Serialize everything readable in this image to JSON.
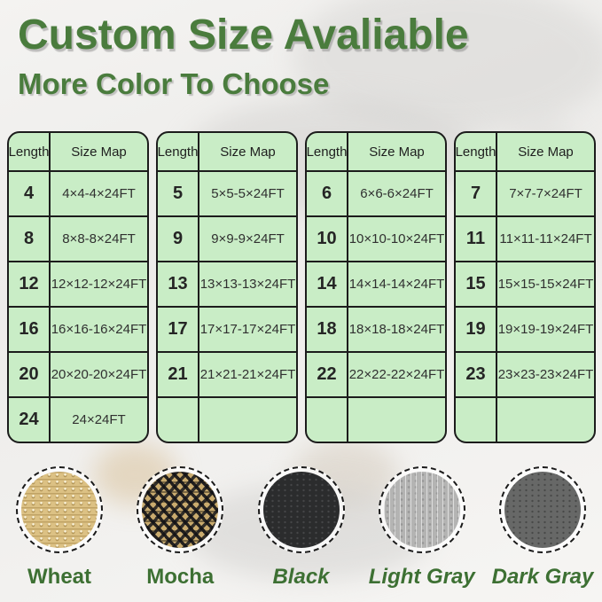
{
  "title": "Custom Size Avaliable",
  "subtitle": "More Color To Choose",
  "palette": {
    "heading_green": "#4a7c3d",
    "label_green": "#3d7033",
    "table_bg": "#c9edc6",
    "table_border": "#1c1c1c"
  },
  "tables": [
    {
      "headers": [
        "Length",
        "Size Map"
      ],
      "rows": [
        [
          "4",
          "4×4-4×24FT"
        ],
        [
          "8",
          "8×8-8×24FT"
        ],
        [
          "12",
          "12×12-12×24FT"
        ],
        [
          "16",
          "16×16-16×24FT"
        ],
        [
          "20",
          "20×20-20×24FT"
        ],
        [
          "24",
          "24×24FT"
        ]
      ]
    },
    {
      "headers": [
        "Length",
        "Size Map"
      ],
      "rows": [
        [
          "5",
          "5×5-5×24FT"
        ],
        [
          "9",
          "9×9-9×24FT"
        ],
        [
          "13",
          "13×13-13×24FT"
        ],
        [
          "17",
          "17×17-17×24FT"
        ],
        [
          "21",
          "21×21-21×24FT"
        ],
        [
          "",
          ""
        ]
      ]
    },
    {
      "headers": [
        "Length",
        "Size Map"
      ],
      "rows": [
        [
          "6",
          "6×6-6×24FT"
        ],
        [
          "10",
          "10×10-10×24FT"
        ],
        [
          "14",
          "14×14-14×24FT"
        ],
        [
          "18",
          "18×18-18×24FT"
        ],
        [
          "22",
          "22×22-22×24FT"
        ],
        [
          "",
          ""
        ]
      ]
    },
    {
      "headers": [
        "Length",
        "Size Map"
      ],
      "rows": [
        [
          "7",
          "7×7-7×24FT"
        ],
        [
          "11",
          "11×11-11×24FT"
        ],
        [
          "15",
          "15×15-15×24FT"
        ],
        [
          "19",
          "19×19-19×24FT"
        ],
        [
          "23",
          "23×23-23×24FT"
        ],
        [
          "",
          ""
        ]
      ]
    }
  ],
  "swatches": [
    {
      "id": "wheat",
      "label": "Wheat",
      "hex": "#dcc184"
    },
    {
      "id": "mocha",
      "label": "Mocha",
      "hex": "#8a7447"
    },
    {
      "id": "black",
      "label": "Black",
      "hex": "#2b2c2d"
    },
    {
      "id": "light-gray",
      "label": "Light Gray",
      "hex": "#b4b4b3"
    },
    {
      "id": "dark-gray",
      "label": "Dark Gray",
      "hex": "#676867"
    }
  ]
}
